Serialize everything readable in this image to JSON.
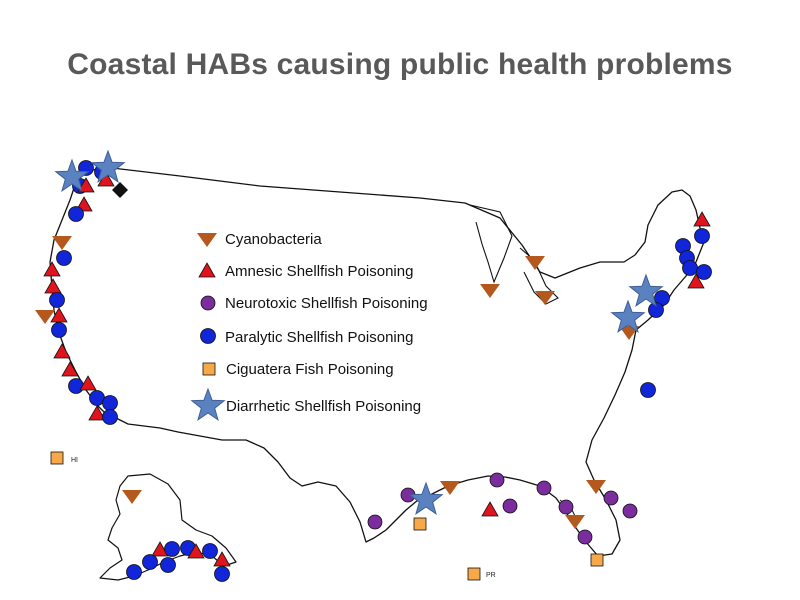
{
  "title": "Coastal HABs causing public health problems",
  "colors": {
    "cyanobacteria": "#b5581e",
    "amnesic": "#e0141c",
    "neurotoxic": "#7b2d9e",
    "paralytic": "#1026d8",
    "ciguatera": "#f7a94a",
    "diarrhetic": "#5b82c0",
    "outline": "#111111"
  },
  "legend": [
    {
      "key": "cyanobacteria",
      "label": "Cyanobacteria",
      "shape": "triangle-down"
    },
    {
      "key": "amnesic",
      "label": "Amnesic Shellfish Poisoning",
      "shape": "triangle-up"
    },
    {
      "key": "neurotoxic",
      "label": "Neurotoxic Shellfish Poisoning",
      "shape": "circle"
    },
    {
      "key": "paralytic",
      "label": "Paralytic Shellfish Poisoning",
      "shape": "circle"
    },
    {
      "key": "ciguatera",
      "label": "Ciguatera Fish Poisoning",
      "shape": "square"
    },
    {
      "key": "diarrhetic",
      "label": "Diarrhetic Shellfish Poisoning",
      "shape": "star"
    }
  ],
  "territory_labels": {
    "hawaii": "HI",
    "puerto_rico": "PR"
  }
}
